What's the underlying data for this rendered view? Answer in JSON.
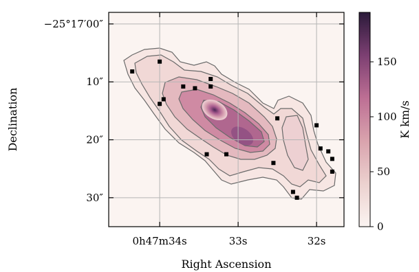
{
  "chart_data": {
    "type": "heatmap",
    "title": "",
    "xlabel": "Right Ascension",
    "ylabel": "Declination",
    "x_ticks": [
      {
        "value": 34,
        "label": "0h47m34s"
      },
      {
        "value": 33,
        "label": "33s"
      },
      {
        "value": 32,
        "label": "32s"
      }
    ],
    "y_ticks": [
      {
        "value": 0,
        "label": "−25°17′00″"
      },
      {
        "value": 10,
        "label": "10″"
      },
      {
        "value": 20,
        "label": "20″"
      },
      {
        "value": 30,
        "label": "30″"
      }
    ],
    "xlim": [
      34.65,
      31.65
    ],
    "ylim": [
      -2.0,
      35.0
    ],
    "grid": true,
    "colorbar": {
      "label": "K km/s",
      "range": [
        0,
        195
      ],
      "ticks": [
        0,
        50,
        100,
        150
      ],
      "colors": [
        "#fbf4f1",
        "#e8bfc3",
        "#c9849c",
        "#8f4f82",
        "#4c2656",
        "#2b1a3a"
      ]
    },
    "emission_peak": {
      "ra_s": 32.65,
      "dec_arcsec": 16.0,
      "value": 195
    },
    "contours": {
      "count": 5,
      "color": "#6a6a6a"
    },
    "markers": [
      {
        "ra_s": 34.0,
        "dec_arcsec": 6.5
      },
      {
        "ra_s": 34.35,
        "dec_arcsec": 8.2
      },
      {
        "ra_s": 33.7,
        "dec_arcsec": 10.8
      },
      {
        "ra_s": 33.55,
        "dec_arcsec": 11.1
      },
      {
        "ra_s": 33.35,
        "dec_arcsec": 9.5
      },
      {
        "ra_s": 33.35,
        "dec_arcsec": 10.8
      },
      {
        "ra_s": 33.95,
        "dec_arcsec": 13.0
      },
      {
        "ra_s": 34.0,
        "dec_arcsec": 13.8
      },
      {
        "ra_s": 33.4,
        "dec_arcsec": 22.5
      },
      {
        "ra_s": 33.15,
        "dec_arcsec": 22.5
      },
      {
        "ra_s": 32.5,
        "dec_arcsec": 16.3
      },
      {
        "ra_s": 32.55,
        "dec_arcsec": 24.0
      },
      {
        "ra_s": 32.3,
        "dec_arcsec": 29.0
      },
      {
        "ra_s": 32.25,
        "dec_arcsec": 30.0
      },
      {
        "ra_s": 32.0,
        "dec_arcsec": 17.5
      },
      {
        "ra_s": 31.95,
        "dec_arcsec": 21.5
      },
      {
        "ra_s": 31.85,
        "dec_arcsec": 22.0
      },
      {
        "ra_s": 31.8,
        "dec_arcsec": 23.3
      },
      {
        "ra_s": 31.8,
        "dec_arcsec": 25.5
      }
    ]
  }
}
